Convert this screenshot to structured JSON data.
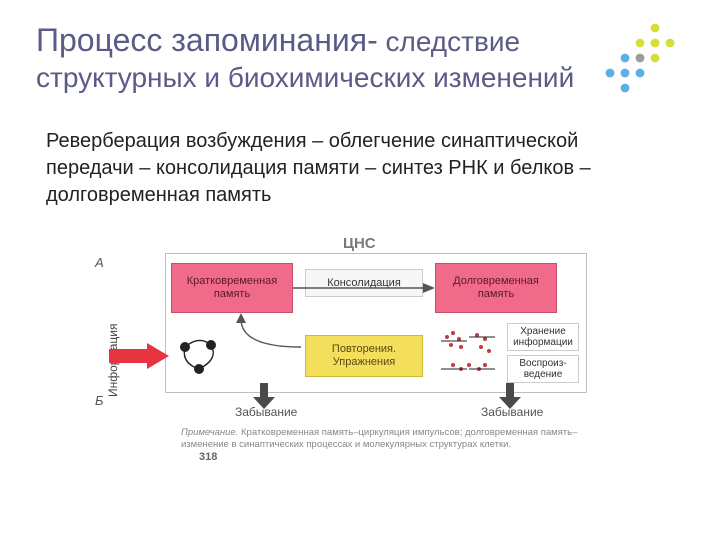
{
  "title": {
    "part1": "Процесс запоминания",
    "dash": "-",
    "part2": "следствие структурных и биохимических изменений",
    "color": "#5b5b87",
    "font_big": 32,
    "font_small": 28
  },
  "logo_dots": {
    "grid": 5,
    "r": 4.4,
    "spacing": 15,
    "colors": [
      [
        "",
        "",
        "",
        "#d6df3a",
        ""
      ],
      [
        "",
        "",
        "#d6df3a",
        "#d6df3a",
        "#d6df3a"
      ],
      [
        "",
        "#5bb0e8",
        "#9c9c9c",
        "#d6df3a",
        ""
      ],
      [
        "#5bb0e8",
        "#5bb0e8",
        "#5bb0e8",
        "",
        ""
      ],
      [
        "",
        "#5bb0e8",
        "",
        "",
        ""
      ]
    ]
  },
  "body": "Реверберация возбуждения – облегчение синаптической передачи – консолидация памяти – синтез РНК и белков – долговременная память",
  "diagram": {
    "cns": "ЦНС",
    "axis_A": "А",
    "axis_B": "Б",
    "info": "Информация",
    "short_term": "Кратковременная память",
    "consolidation": "Консолидация",
    "long_term": "Долговременная память",
    "repetition": "Повторения. Упражнения",
    "storage": "Хранение информации",
    "reproduction": "Воспроиз-\nведение",
    "forget1": "Забывание",
    "forget2": "Забывание",
    "colors": {
      "pink": "#f06a8a",
      "yellow": "#f4df5c",
      "frame": "#bdbdbd",
      "arrow_in": "#e73440",
      "arrow_dark": "#4a4a4a",
      "scribble": "#c33b3b"
    }
  },
  "note": {
    "prefix": "Примечание.",
    "text": " Кратковременная память–циркуляция импульсов; долговременная память–изменение в синаптических процессах и молекулярных структурах клетки."
  },
  "page_num": "318"
}
